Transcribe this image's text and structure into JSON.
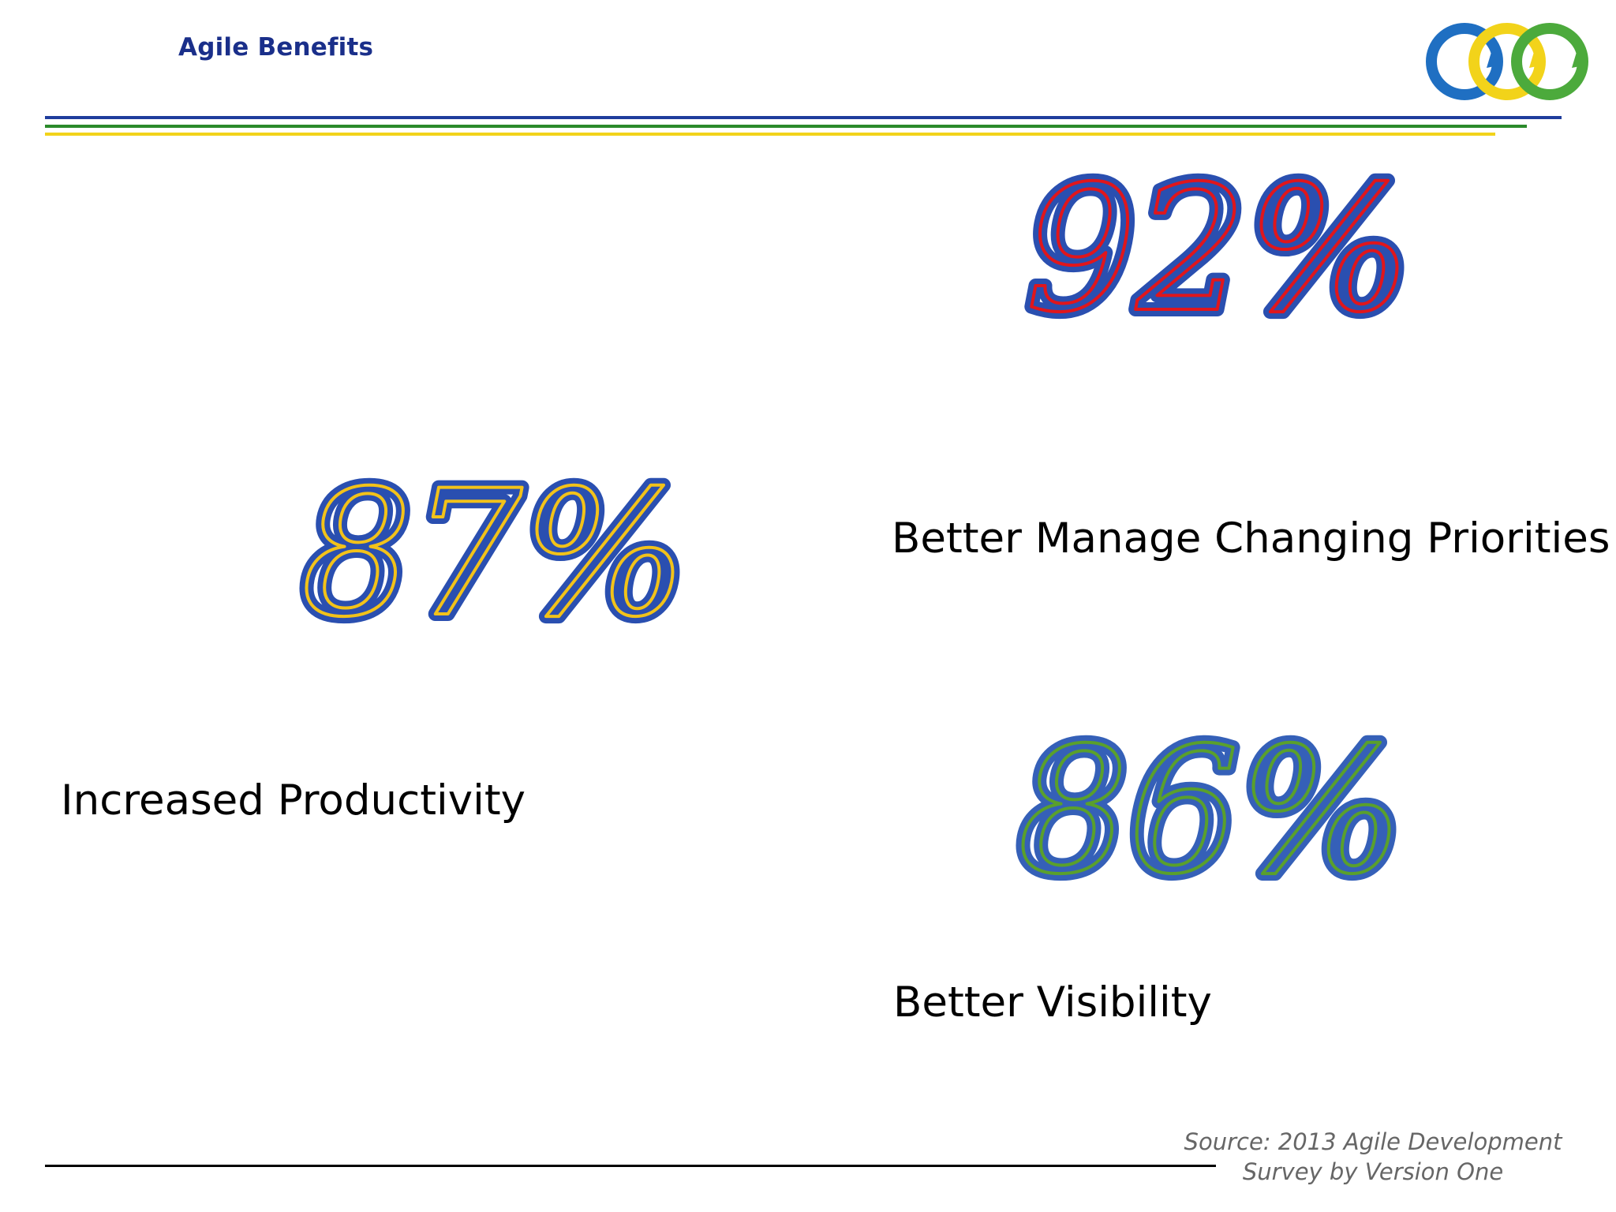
{
  "header": {
    "title": "Agile Benefits"
  },
  "logo": {
    "icon": "three-interlocking-arrow-circles-icon",
    "colors": [
      "#1f6fc2",
      "#f2d31a",
      "#4caa3c"
    ]
  },
  "rules": {
    "colors": [
      "#1f3d9c",
      "#2b8a2b",
      "#f2d31a"
    ]
  },
  "stats": [
    {
      "value": "92%",
      "label": "Better Manage Changing Priorities",
      "outline_color": "#2a4fb0",
      "inner_color": "#e0161c"
    },
    {
      "value": "87%",
      "label": "Increased Productivity",
      "outline_color": "#2a4fb0",
      "inner_color": "#f2c21a"
    },
    {
      "value": "86%",
      "label": "Better Visibility",
      "outline_color": "#3560b8",
      "inner_color": "#5aa02c"
    }
  ],
  "footer": {
    "source_line1": "Source: 2013 Agile Development",
    "source_line2": "Survey by Version One"
  }
}
